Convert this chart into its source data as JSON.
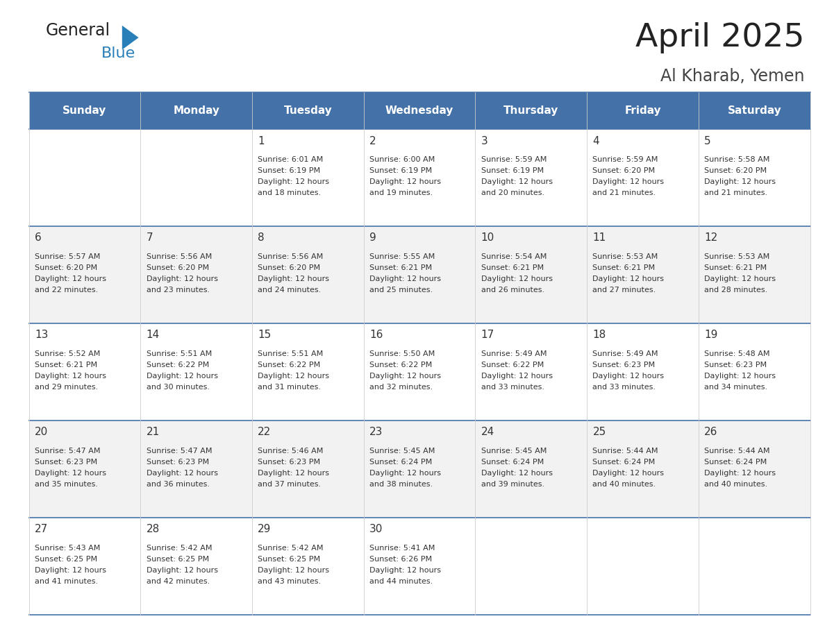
{
  "title": "April 2025",
  "subtitle": "Al Kharab, Yemen",
  "days_of_week": [
    "Sunday",
    "Monday",
    "Tuesday",
    "Wednesday",
    "Thursday",
    "Friday",
    "Saturday"
  ],
  "header_bg": "#4472A8",
  "header_text": "#FFFFFF",
  "cell_bg_white": "#FFFFFF",
  "cell_bg_gray": "#F2F2F2",
  "cell_border_color": "#4472A8",
  "row_line_color": "#4472A8",
  "col_line_color": "#CCCCCC",
  "text_color": "#333333",
  "title_color": "#222222",
  "subtitle_color": "#444444",
  "general_text_color": "#222222",
  "blue_text_color": "#2980B9",
  "calendar_data": [
    [
      null,
      null,
      {
        "day": 1,
        "sunrise": "6:01 AM",
        "sunset": "6:19 PM",
        "daylight": "12 hours and 18 minutes."
      },
      {
        "day": 2,
        "sunrise": "6:00 AM",
        "sunset": "6:19 PM",
        "daylight": "12 hours and 19 minutes."
      },
      {
        "day": 3,
        "sunrise": "5:59 AM",
        "sunset": "6:19 PM",
        "daylight": "12 hours and 20 minutes."
      },
      {
        "day": 4,
        "sunrise": "5:59 AM",
        "sunset": "6:20 PM",
        "daylight": "12 hours and 21 minutes."
      },
      {
        "day": 5,
        "sunrise": "5:58 AM",
        "sunset": "6:20 PM",
        "daylight": "12 hours and 21 minutes."
      }
    ],
    [
      {
        "day": 6,
        "sunrise": "5:57 AM",
        "sunset": "6:20 PM",
        "daylight": "12 hours and 22 minutes."
      },
      {
        "day": 7,
        "sunrise": "5:56 AM",
        "sunset": "6:20 PM",
        "daylight": "12 hours and 23 minutes."
      },
      {
        "day": 8,
        "sunrise": "5:56 AM",
        "sunset": "6:20 PM",
        "daylight": "12 hours and 24 minutes."
      },
      {
        "day": 9,
        "sunrise": "5:55 AM",
        "sunset": "6:21 PM",
        "daylight": "12 hours and 25 minutes."
      },
      {
        "day": 10,
        "sunrise": "5:54 AM",
        "sunset": "6:21 PM",
        "daylight": "12 hours and 26 minutes."
      },
      {
        "day": 11,
        "sunrise": "5:53 AM",
        "sunset": "6:21 PM",
        "daylight": "12 hours and 27 minutes."
      },
      {
        "day": 12,
        "sunrise": "5:53 AM",
        "sunset": "6:21 PM",
        "daylight": "12 hours and 28 minutes."
      }
    ],
    [
      {
        "day": 13,
        "sunrise": "5:52 AM",
        "sunset": "6:21 PM",
        "daylight": "12 hours and 29 minutes."
      },
      {
        "day": 14,
        "sunrise": "5:51 AM",
        "sunset": "6:22 PM",
        "daylight": "12 hours and 30 minutes."
      },
      {
        "day": 15,
        "sunrise": "5:51 AM",
        "sunset": "6:22 PM",
        "daylight": "12 hours and 31 minutes."
      },
      {
        "day": 16,
        "sunrise": "5:50 AM",
        "sunset": "6:22 PM",
        "daylight": "12 hours and 32 minutes."
      },
      {
        "day": 17,
        "sunrise": "5:49 AM",
        "sunset": "6:22 PM",
        "daylight": "12 hours and 33 minutes."
      },
      {
        "day": 18,
        "sunrise": "5:49 AM",
        "sunset": "6:23 PM",
        "daylight": "12 hours and 33 minutes."
      },
      {
        "day": 19,
        "sunrise": "5:48 AM",
        "sunset": "6:23 PM",
        "daylight": "12 hours and 34 minutes."
      }
    ],
    [
      {
        "day": 20,
        "sunrise": "5:47 AM",
        "sunset": "6:23 PM",
        "daylight": "12 hours and 35 minutes."
      },
      {
        "day": 21,
        "sunrise": "5:47 AM",
        "sunset": "6:23 PM",
        "daylight": "12 hours and 36 minutes."
      },
      {
        "day": 22,
        "sunrise": "5:46 AM",
        "sunset": "6:23 PM",
        "daylight": "12 hours and 37 minutes."
      },
      {
        "day": 23,
        "sunrise": "5:45 AM",
        "sunset": "6:24 PM",
        "daylight": "12 hours and 38 minutes."
      },
      {
        "day": 24,
        "sunrise": "5:45 AM",
        "sunset": "6:24 PM",
        "daylight": "12 hours and 39 minutes."
      },
      {
        "day": 25,
        "sunrise": "5:44 AM",
        "sunset": "6:24 PM",
        "daylight": "12 hours and 40 minutes."
      },
      {
        "day": 26,
        "sunrise": "5:44 AM",
        "sunset": "6:24 PM",
        "daylight": "12 hours and 40 minutes."
      }
    ],
    [
      {
        "day": 27,
        "sunrise": "5:43 AM",
        "sunset": "6:25 PM",
        "daylight": "12 hours and 41 minutes."
      },
      {
        "day": 28,
        "sunrise": "5:42 AM",
        "sunset": "6:25 PM",
        "daylight": "12 hours and 42 minutes."
      },
      {
        "day": 29,
        "sunrise": "5:42 AM",
        "sunset": "6:25 PM",
        "daylight": "12 hours and 43 minutes."
      },
      {
        "day": 30,
        "sunrise": "5:41 AM",
        "sunset": "6:26 PM",
        "daylight": "12 hours and 44 minutes."
      },
      null,
      null,
      null
    ]
  ]
}
